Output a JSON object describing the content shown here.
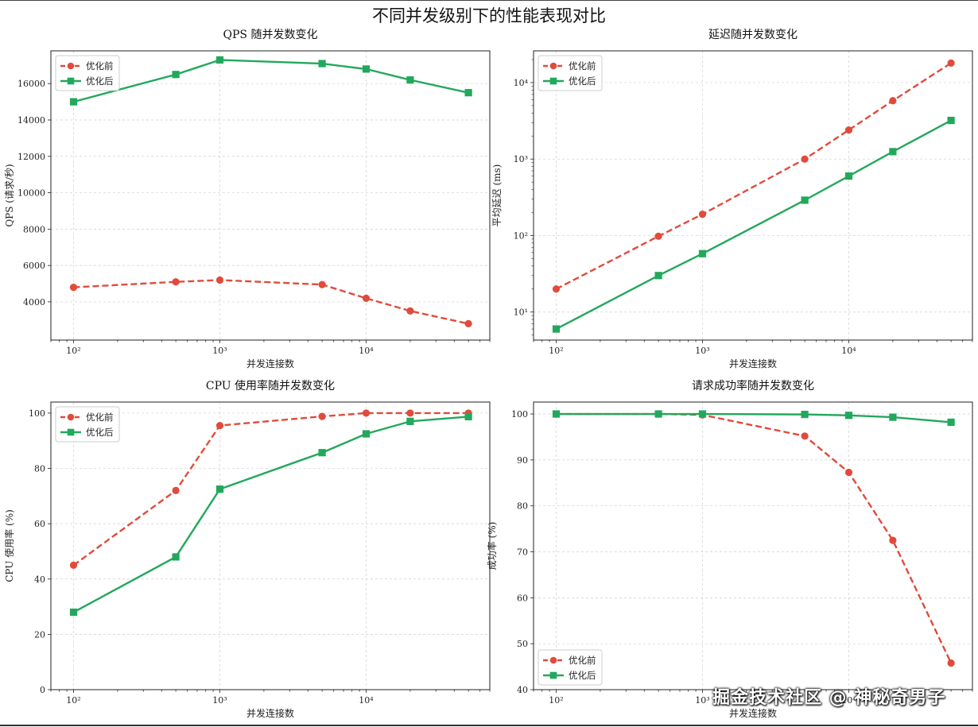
{
  "figure": {
    "suptitle": "不同并发级别下的性能表现对比",
    "watermark": "掘金技术社区 @ 神秘奇男子"
  },
  "colors": {
    "before": "#e04b3c",
    "after": "#22a85c"
  },
  "chart_data": [
    {
      "type": "line",
      "title": "QPS 随并发数变化",
      "xlabel": "并发连接数",
      "ylabel": "QPS (请求/秒)",
      "xscale": "log",
      "yscale": "linear",
      "xlim": [
        70,
        70000
      ],
      "ylim": [
        1900,
        17800
      ],
      "yticks": [
        4000,
        6000,
        8000,
        10000,
        12000,
        14000,
        16000
      ],
      "grid": true,
      "legend_position": "top-left",
      "x": [
        100,
        500,
        1000,
        5000,
        10000,
        20000,
        50000
      ],
      "series": [
        {
          "name": "优化前",
          "style": "dashed",
          "marker": "circle",
          "values": [
            4800,
            5100,
            5200,
            4950,
            4200,
            3500,
            2800
          ]
        },
        {
          "name": "优化后",
          "style": "solid",
          "marker": "square",
          "values": [
            15000,
            16500,
            17300,
            17100,
            16800,
            16200,
            15500
          ]
        }
      ]
    },
    {
      "type": "line",
      "title": "延迟随并发数变化",
      "xlabel": "并发连接数",
      "ylabel": "平均延迟 (ms)",
      "xscale": "log",
      "yscale": "log",
      "xlim": [
        70,
        70000
      ],
      "ylim": [
        4.3,
        26000
      ],
      "yticks": [
        10,
        100,
        1000,
        10000
      ],
      "grid": true,
      "legend_position": "top-left",
      "x": [
        100,
        500,
        1000,
        5000,
        10000,
        20000,
        50000
      ],
      "series": [
        {
          "name": "优化前",
          "style": "dashed",
          "marker": "circle",
          "values": [
            20,
            98,
            190,
            1000,
            2400,
            5800,
            18000
          ]
        },
        {
          "name": "优化后",
          "style": "solid",
          "marker": "square",
          "values": [
            6,
            30,
            58,
            290,
            600,
            1250,
            3200
          ]
        }
      ]
    },
    {
      "type": "line",
      "title": "CPU 使用率随并发数变化",
      "xlabel": "并发连接数",
      "ylabel": "CPU 使用率 (%)",
      "xscale": "log",
      "yscale": "linear",
      "xlim": [
        70,
        70000
      ],
      "ylim": [
        0,
        104
      ],
      "yticks": [
        0,
        20,
        40,
        60,
        80,
        100
      ],
      "grid": true,
      "legend_position": "top-left",
      "x": [
        100,
        500,
        1000,
        5000,
        10000,
        20000,
        50000
      ],
      "series": [
        {
          "name": "优化前",
          "style": "dashed",
          "marker": "circle",
          "values": [
            45,
            72,
            95.5,
            98.8,
            100,
            100,
            100
          ]
        },
        {
          "name": "优化后",
          "style": "solid",
          "marker": "square",
          "values": [
            28,
            48,
            72.5,
            85.7,
            92.5,
            97,
            98.7
          ]
        }
      ]
    },
    {
      "type": "line",
      "title": "请求成功率随并发数变化",
      "xlabel": "并发连接数",
      "ylabel": "成功率 (%)",
      "xscale": "log",
      "yscale": "linear",
      "xlim": [
        70,
        70000
      ],
      "ylim": [
        40,
        102.6
      ],
      "yticks": [
        40,
        50,
        60,
        70,
        80,
        90,
        100
      ],
      "grid": true,
      "legend_position": "bottom-left",
      "x": [
        100,
        500,
        1000,
        5000,
        10000,
        20000,
        50000
      ],
      "series": [
        {
          "name": "优化前",
          "style": "dashed",
          "marker": "circle",
          "values": [
            100,
            100,
            99.8,
            95.2,
            87.3,
            72.5,
            45.8
          ]
        },
        {
          "name": "优化后",
          "style": "solid",
          "marker": "square",
          "values": [
            100,
            100,
            100,
            99.9,
            99.7,
            99.3,
            98.2
          ]
        }
      ]
    }
  ]
}
